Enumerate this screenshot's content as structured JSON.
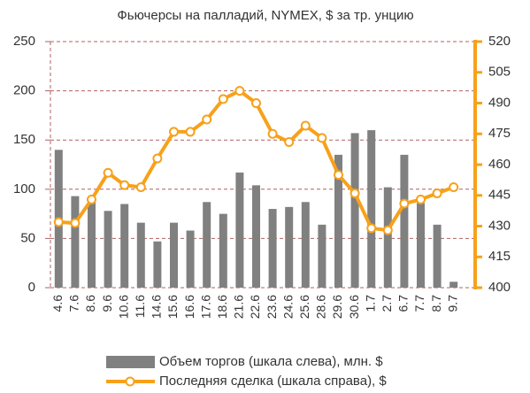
{
  "chart_data": {
    "type": "bar_line",
    "title": "Фьючерсы на палладий, NYMEX, $ за тр. унцию",
    "categories": [
      "4.6",
      "7.6",
      "8.6",
      "9.6",
      "10.6",
      "11.6",
      "14.6",
      "15.6",
      "16.6",
      "17.6",
      "18.6",
      "21.6",
      "22.6",
      "23.6",
      "24.6",
      "25.6",
      "28.6",
      "29.6",
      "30.6",
      "1.7",
      "2.7",
      "6.7",
      "7.7",
      "8.7",
      "9.7"
    ],
    "series": [
      {
        "name": "Объем торгов (шкала слева), млн. $",
        "color": "#808080",
        "type": "bar",
        "axis": "y",
        "values": [
          140,
          93,
          88,
          78,
          85,
          66,
          47,
          66,
          58,
          87,
          75,
          117,
          104,
          80,
          82,
          87,
          64,
          135,
          157,
          160,
          102,
          135,
          86,
          64,
          6
        ]
      },
      {
        "name": "Последняя сделка (шкала справа), $",
        "color": "#f7a11a",
        "type": "line",
        "axis": "y2",
        "values": [
          432,
          431.5,
          443,
          456,
          450,
          449,
          463,
          476,
          476,
          482,
          492,
          496,
          490,
          475,
          471,
          479,
          473,
          455,
          446,
          429,
          428,
          441,
          443,
          446,
          449
        ]
      }
    ],
    "ylim": [
      0,
      250
    ],
    "yticks": [
      0,
      50,
      100,
      150,
      200,
      250
    ],
    "y2lim": [
      400,
      520
    ],
    "y2ticks": [
      400,
      415,
      430,
      445,
      460,
      475,
      490,
      505,
      520
    ],
    "grid": true
  }
}
